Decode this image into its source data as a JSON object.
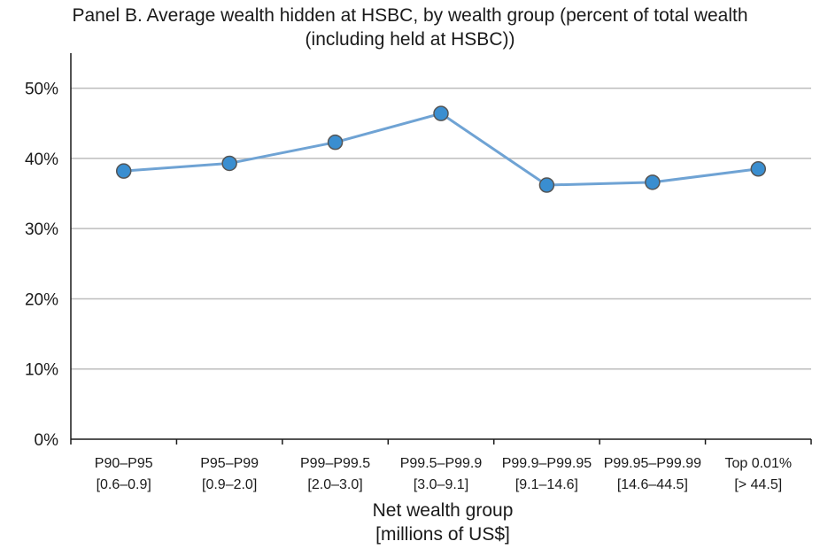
{
  "chart_data": {
    "type": "line",
    "title_line1": "Panel B. Average wealth hidden at HSBC, by wealth group (percent of total wealth",
    "title_line2": "(including held at HSBC))",
    "xlabel_line1": "Net wealth group",
    "xlabel_line2": "[millions of US$]",
    "ylabel": "",
    "categories": [
      {
        "group": "P90–P95",
        "range": "[0.6–0.9]"
      },
      {
        "group": "P95–P99",
        "range": "[0.9–2.0]"
      },
      {
        "group": "P99–P99.5",
        "range": "[2.0–3.0]"
      },
      {
        "group": "P99.5–P99.9",
        "range": "[3.0–9.1]"
      },
      {
        "group": "P99.9–P99.95",
        "range": "[9.1–14.6]"
      },
      {
        "group": "P99.95–P99.99",
        "range": "[14.6–44.5]"
      },
      {
        "group": "Top 0.01%",
        "range": "[> 44.5]"
      }
    ],
    "values": [
      38.2,
      39.3,
      42.3,
      46.4,
      36.2,
      36.6,
      38.5
    ],
    "ylim": [
      0,
      55
    ],
    "yticks": [
      0,
      10,
      20,
      30,
      40,
      50
    ],
    "ytick_labels": [
      "0%",
      "10%",
      "20%",
      "30%",
      "40%",
      "50%"
    ],
    "grid": true,
    "line_color": "#6fa3d4",
    "marker_color": "#3a8ed0",
    "marker_edge": "#555555",
    "grid_color": "#bdbdbd"
  }
}
